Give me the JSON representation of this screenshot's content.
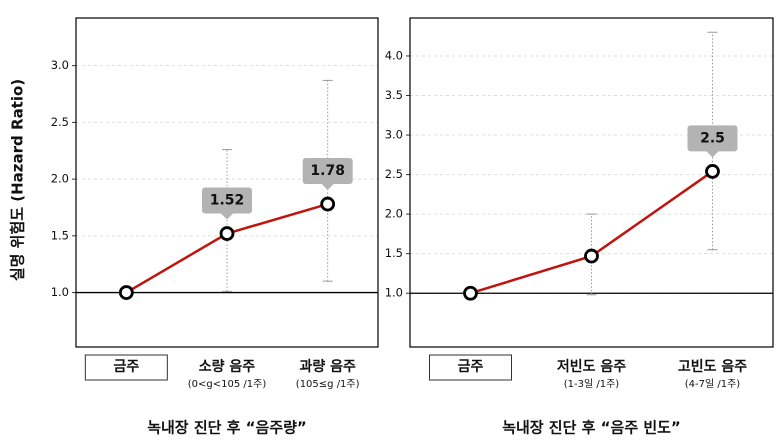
{
  "chart_data": [
    {
      "type": "line",
      "ylabel": "실명 위험도 (Hazard Ratio)",
      "xlabel": "녹내장 진단 후 “음주량”",
      "categories": [
        "금주",
        "소량 음주",
        "과량 음주"
      ],
      "subcategories": [
        null,
        "(0<g<105 /1주)",
        "(105≤g /1주)"
      ],
      "values": [
        1.0,
        1.52,
        1.78
      ],
      "value_labels": [
        null,
        "1.52",
        "1.78"
      ],
      "lower": [
        null,
        1.01,
        1.1
      ],
      "upper": [
        null,
        2.26,
        2.87
      ],
      "color": "#c0140f",
      "reference_line": {
        "value": 1,
        "label": "1.0"
      },
      "ylim": [
        0.52,
        3.42
      ],
      "yticks": [
        {
          "value": 1,
          "label": "1.0"
        },
        1.5,
        {
          "value": 2,
          "label": "2.0"
        },
        2.5,
        {
          "value": 3,
          "label": "3.0"
        }
      ],
      "grid": true
    },
    {
      "type": "line",
      "xlabel": "녹내장 진단 후 “음주 빈도”",
      "categories": [
        "금주",
        "저빈도 음주",
        "고빈도 음주"
      ],
      "subcategories": [
        null,
        "(1-3일 /1주)",
        "(4-7일 /1주)"
      ],
      "values": [
        1.0,
        1.47,
        2.54
      ],
      "value_labels": [
        null,
        null,
        "2.5"
      ],
      "lower": [
        null,
        0.98,
        1.55
      ],
      "upper": [
        null,
        2.0,
        4.3
      ],
      "color": "#c0140f",
      "reference_line": {
        "value": 1,
        "label": "1.0"
      },
      "ylim": [
        0.32,
        4.48
      ],
      "yticks": [
        {
          "value": 1,
          "label": "1.0"
        },
        1.5,
        {
          "value": 2,
          "label": "2.0"
        },
        2.5,
        {
          "value": 3,
          "label": "3.0"
        },
        3.5,
        {
          "value": 4,
          "label": "4.0"
        }
      ],
      "grid": true
    }
  ]
}
